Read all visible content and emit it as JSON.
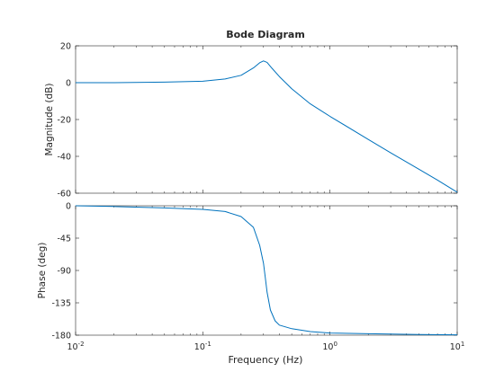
{
  "chart_data": {
    "type": "line",
    "title": "Bode Diagram",
    "xlabel": "Frequency  (Hz)",
    "x_scale": "log",
    "xlim": [
      0.01,
      10
    ],
    "x_ticks": [
      {
        "value": 0.01,
        "base": "10",
        "exp": "-2"
      },
      {
        "value": 0.1,
        "base": "10",
        "exp": "-1"
      },
      {
        "value": 1,
        "base": "10",
        "exp": "0"
      },
      {
        "value": 10,
        "base": "10",
        "exp": "1"
      }
    ],
    "grid": false,
    "line_color": "#0072bd",
    "axes_color": "#262626",
    "panels": [
      {
        "ylabel": "Magnitude (dB)",
        "ylim": [
          -60,
          20
        ],
        "y_ticks": [
          20,
          0,
          -20,
          -40,
          -60
        ],
        "series": {
          "x": [
            0.01,
            0.02,
            0.05,
            0.1,
            0.15,
            0.2,
            0.25,
            0.28,
            0.3,
            0.32,
            0.35,
            0.4,
            0.5,
            0.7,
            1.0,
            2.0,
            3.0,
            5.0,
            7.0,
            10.0
          ],
          "y": [
            0.0,
            0.0,
            0.3,
            0.8,
            2.0,
            4.0,
            8.0,
            10.8,
            11.8,
            11.0,
            7.8,
            3.3,
            -3.3,
            -11.5,
            -18.3,
            -30.8,
            -38.1,
            -47.0,
            -52.9,
            -59.5
          ]
        }
      },
      {
        "ylabel": "Phase (deg)",
        "ylim": [
          -180,
          0
        ],
        "y_ticks": [
          0,
          -45,
          -90,
          -135,
          -180
        ],
        "series": {
          "x": [
            0.01,
            0.02,
            0.05,
            0.1,
            0.15,
            0.2,
            0.25,
            0.28,
            0.3,
            0.31,
            0.32,
            0.34,
            0.37,
            0.4,
            0.5,
            0.7,
            1.0,
            2.0,
            5.0,
            10.0
          ],
          "y": [
            0,
            -1,
            -3,
            -5,
            -8,
            -15,
            -30,
            -55,
            -80,
            -100,
            -120,
            -145,
            -160,
            -166,
            -171,
            -175,
            -177,
            -178,
            -179,
            -179.5
          ]
        }
      }
    ]
  }
}
